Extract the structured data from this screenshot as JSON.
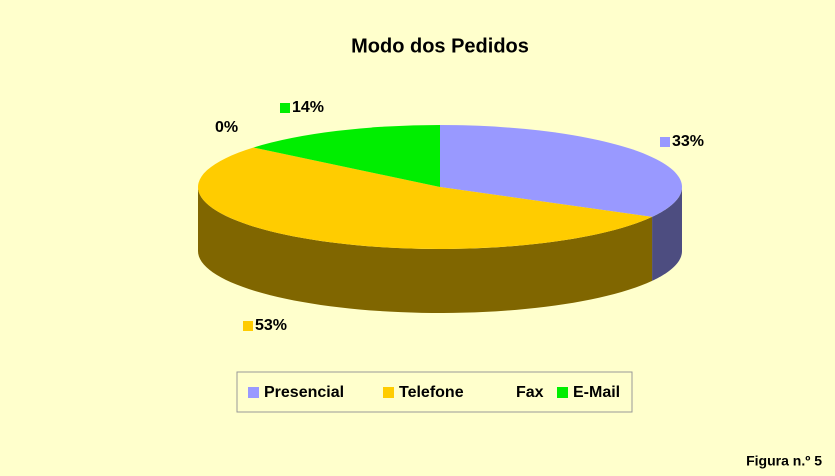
{
  "chart_data": {
    "type": "pie",
    "title": "Modo dos Pedidos",
    "categories": [
      "Presencial",
      "Telefone",
      "Fax",
      "E-Mail"
    ],
    "values": [
      33,
      53,
      0,
      14
    ],
    "value_labels": [
      "33%",
      "53%",
      "0%",
      "14%"
    ],
    "colors": [
      "#9999ff",
      "#ffcc00",
      "#ffffcc",
      "#00ee00"
    ],
    "legend": "bottom"
  },
  "caption": "Figura n.º 5"
}
